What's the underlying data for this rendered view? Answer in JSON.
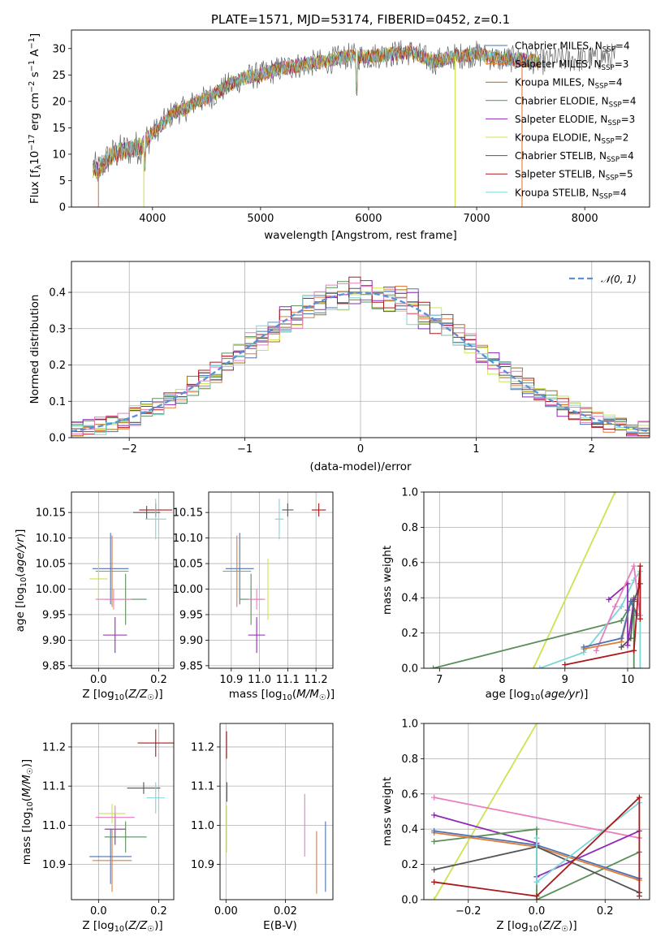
{
  "chart_data": [
    {
      "id": "spectrum",
      "type": "line",
      "title": "PLATE=1571, MJD=53174, FIBERID=0452, z=0.1",
      "xlabel": "wavelength [Angstrom, rest frame]",
      "ylabel": "Flux [f_λ 10^-17 erg cm^-2 s^-1 A^-1]",
      "xlim": [
        3250,
        8600
      ],
      "ylim": [
        0,
        33.5
      ],
      "xticks": [
        4000,
        5000,
        6000,
        7000,
        8000
      ],
      "yticks": [
        0,
        5,
        10,
        15,
        20,
        25,
        30
      ],
      "grid": false,
      "legend_position": "right",
      "envelope": {
        "x": [
          3450,
          3500,
          3600,
          3700,
          3800,
          3900,
          3950,
          4000,
          4100,
          4200,
          4300,
          4400,
          4500,
          4700,
          4850,
          5000,
          5200,
          5400,
          5600,
          5800,
          6000,
          6200,
          6400,
          6600,
          6800,
          7000,
          7200,
          7400,
          7600,
          7800,
          8000,
          8200,
          8300
        ],
        "y": [
          7.3,
          7.0,
          9.5,
          10.5,
          11.0,
          11.5,
          13.0,
          13.8,
          16.0,
          18.0,
          18.5,
          20.0,
          20.5,
          23.0,
          24.5,
          25.0,
          26.3,
          27.0,
          27.5,
          28.5,
          28.5,
          29.0,
          29.3,
          27.5,
          28.5,
          29.0,
          28.0,
          28.0,
          27.5,
          28.0,
          28.0,
          28.5,
          28.5
        ]
      },
      "series": [
        {
          "name": "Chabrier MILES, N_SSP=4",
          "color": "#4c72b0"
        },
        {
          "name": "Salpeter MILES, N_SSP=3",
          "color": "#e17d3a"
        },
        {
          "name": "Kroupa MILES, N_SSP=4",
          "color": "#a56f15"
        },
        {
          "name": "Chabrier ELODIE, N_SSP=4",
          "color": "#5b8f5a"
        },
        {
          "name": "Salpeter ELODIE, N_SSP=3",
          "color": "#8e2ab5"
        },
        {
          "name": "Kroupa ELODIE, N_SSP=2",
          "color": "#cde350"
        },
        {
          "name": "Chabrier STELIB, N_SSP=4",
          "color": "#555555"
        },
        {
          "name": "Salpeter STELIB, N_SSP=5",
          "color": "#aa1a1a"
        },
        {
          "name": "Kroupa STELIB, N_SSP=4",
          "color": "#7fd4d8"
        }
      ]
    },
    {
      "id": "residuals",
      "type": "step",
      "xlabel": "(data-model)/error",
      "ylabel": "Normed distribution",
      "xlim": [
        -2.5,
        2.5
      ],
      "ylim": [
        0,
        0.485
      ],
      "xticks": [
        -2,
        -1,
        0,
        1,
        2
      ],
      "yticks": [
        0.0,
        0.1,
        0.2,
        0.3,
        0.4
      ],
      "grid": true,
      "legend": [
        {
          "label": "𝒩(0, 1)",
          "color": "#5b8fd6",
          "style": "dashed"
        }
      ],
      "legend_position": "top-right",
      "gaussian": {
        "mean": 0,
        "sigma": 1
      }
    },
    {
      "id": "age-vs-Z",
      "type": "errorbar",
      "xlabel": "Z [log10(Z/Z☉)]",
      "ylabel": "age [log10(age/yr)]",
      "xlim": [
        -0.09,
        0.25
      ],
      "ylim": [
        9.845,
        10.19
      ],
      "xticks": [
        "0.0",
        "0.2"
      ],
      "yticks": [
        "9.85",
        "9.90",
        "9.95",
        "10.00",
        "10.05",
        "10.10",
        "10.15"
      ],
      "grid": true,
      "points": [
        {
          "color": "#4c72b0",
          "x": 0.04,
          "y": 10.04,
          "xerr": 0.06,
          "yerr": 0.07
        },
        {
          "color": "#e17d3a",
          "x": 0.045,
          "y": 10.035,
          "xerr": 0.055,
          "yerr": 0.07
        },
        {
          "color": "#5b8f5a",
          "x": 0.09,
          "y": 9.98,
          "xerr": 0.07,
          "yerr": 0.05
        },
        {
          "color": "#8e2ab5",
          "x": 0.055,
          "y": 9.91,
          "xerr": 0.04,
          "yerr": 0.035
        },
        {
          "color": "#cde350",
          "x": 0.0,
          "y": 10.02,
          "xerr": 0.03,
          "yerr": 0.045
        },
        {
          "color": "#555555",
          "x": 0.16,
          "y": 10.15,
          "xerr": 0.045,
          "yerr": 0.013
        },
        {
          "color": "#aa1a1a",
          "x": 0.19,
          "y": 10.155,
          "xerr": 0.055,
          "yerr": 0.013
        },
        {
          "color": "#7fd4d8",
          "x": 0.19,
          "y": 10.137,
          "xerr": 0.035,
          "yerr": 0.04
        },
        {
          "color": "#e87ebf",
          "x": 0.05,
          "y": 9.98,
          "xerr": 0.06,
          "yerr": 0.02
        }
      ]
    },
    {
      "id": "age-vs-mass",
      "type": "errorbar",
      "xlabel": "mass [log10(M/M☉)]",
      "xlim": [
        10.82,
        11.26
      ],
      "ylim": [
        9.845,
        10.19
      ],
      "xticks": [
        "10.9",
        "11.0",
        "11.1",
        "11.2"
      ],
      "yticks": [
        "9.85",
        "9.90",
        "9.95",
        "10.00",
        "10.05",
        "10.10",
        "10.15"
      ],
      "grid": true,
      "points": [
        {
          "color": "#4c72b0",
          "x": 10.93,
          "y": 10.04,
          "xerr": 0.05,
          "yerr": 0.07
        },
        {
          "color": "#e17d3a",
          "x": 10.92,
          "y": 10.035,
          "xerr": 0.05,
          "yerr": 0.07
        },
        {
          "color": "#5b8f5a",
          "x": 10.97,
          "y": 9.98,
          "xerr": 0.04,
          "yerr": 0.05
        },
        {
          "color": "#8e2ab5",
          "x": 10.99,
          "y": 9.91,
          "xerr": 0.03,
          "yerr": 0.035
        },
        {
          "color": "#cde350",
          "x": 11.03,
          "y": 10.0,
          "xerr": 0.02,
          "yerr": 0.06
        },
        {
          "color": "#555555",
          "x": 11.1,
          "y": 10.155,
          "xerr": 0.02,
          "yerr": 0.013
        },
        {
          "color": "#aa1a1a",
          "x": 11.21,
          "y": 10.155,
          "xerr": 0.025,
          "yerr": 0.013
        },
        {
          "color": "#7fd4d8",
          "x": 11.07,
          "y": 10.137,
          "xerr": 0.015,
          "yerr": 0.04
        },
        {
          "color": "#e87ebf",
          "x": 10.99,
          "y": 9.98,
          "xerr": 0.03,
          "yerr": 0.02
        }
      ]
    },
    {
      "id": "weight-vs-age",
      "type": "line",
      "xlabel": "age [log10(age/yr)]",
      "ylabel": "mass weight",
      "xlim": [
        6.75,
        10.35
      ],
      "ylim": [
        0,
        1.0
      ],
      "xticks": [
        "7",
        "8",
        "9",
        "10"
      ],
      "yticks": [
        "0.0",
        "0.2",
        "0.4",
        "0.6",
        "0.8",
        "1.0"
      ],
      "grid": true,
      "series": [
        {
          "color": "#cde350",
          "x": [
            8.5,
            9.8
          ],
          "y": [
            0.0,
            1.0
          ]
        },
        {
          "color": "#5b8f5a",
          "x": [
            6.9,
            9.9,
            10.0,
            10.1,
            10.1
          ],
          "y": [
            0.0,
            0.27,
            0.33,
            0.4,
            0.0
          ]
        },
        {
          "color": "#7fd4d8",
          "x": [
            8.6,
            9.3,
            9.9,
            10.1,
            10.2,
            10.2
          ],
          "y": [
            0.0,
            0.09,
            0.35,
            0.5,
            0.55,
            0.0
          ]
        },
        {
          "color": "#8e2ab5",
          "x": [
            9.7,
            10.0,
            10.0,
            10.1
          ],
          "y": [
            0.39,
            0.48,
            0.13,
            0.39
          ]
        },
        {
          "color": "#e87ebf",
          "x": [
            9.5,
            9.8,
            10.1,
            10.2
          ],
          "y": [
            0.1,
            0.35,
            0.58,
            0.3
          ]
        },
        {
          "color": "#e17d3a",
          "x": [
            9.3,
            9.9,
            10.05,
            10.15
          ],
          "y": [
            0.11,
            0.15,
            0.38,
            0.31
          ]
        },
        {
          "color": "#4c72b0",
          "x": [
            9.3,
            9.9,
            10.05,
            10.15
          ],
          "y": [
            0.12,
            0.17,
            0.38,
            0.3
          ]
        },
        {
          "color": "#555555",
          "x": [
            9.9,
            10.05,
            10.1,
            10.2
          ],
          "y": [
            0.12,
            0.17,
            0.38,
            0.48
          ]
        },
        {
          "color": "#aa1a1a",
          "x": [
            9.0,
            10.1,
            10.2,
            10.2
          ],
          "y": [
            0.02,
            0.1,
            0.58,
            0.28
          ]
        }
      ]
    },
    {
      "id": "mass-vs-Z",
      "type": "errorbar",
      "xlabel": "Z [log10(Z/Z☉)]",
      "ylabel": "mass [log10(M/M☉)]",
      "xlim": [
        -0.09,
        0.25
      ],
      "ylim": [
        10.81,
        11.26
      ],
      "xticks": [
        "0.0",
        "0.2"
      ],
      "yticks": [
        "10.9",
        "11.0",
        "11.1",
        "11.2"
      ],
      "grid": true,
      "points": [
        {
          "color": "#4c72b0",
          "x": 0.04,
          "y": 10.92,
          "xerr": 0.07,
          "yerr": 0.07
        },
        {
          "color": "#e17d3a",
          "x": 0.045,
          "y": 10.91,
          "xerr": 0.065,
          "yerr": 0.08
        },
        {
          "color": "#5b8f5a",
          "x": 0.09,
          "y": 10.97,
          "xerr": 0.07,
          "yerr": 0.04
        },
        {
          "color": "#8e2ab5",
          "x": 0.055,
          "y": 10.99,
          "xerr": 0.035,
          "yerr": 0.04
        },
        {
          "color": "#cde350",
          "x": 0.045,
          "y": 11.03,
          "xerr": 0.045,
          "yerr": 0.025
        },
        {
          "color": "#555555",
          "x": 0.15,
          "y": 11.095,
          "xerr": 0.055,
          "yerr": 0.015
        },
        {
          "color": "#aa1a1a",
          "x": 0.19,
          "y": 11.21,
          "xerr": 0.06,
          "yerr": 0.035
        },
        {
          "color": "#7fd4d8",
          "x": 0.19,
          "y": 11.07,
          "xerr": 0.03,
          "yerr": 0.04
        },
        {
          "color": "#e87ebf",
          "x": 0.055,
          "y": 11.02,
          "xerr": 0.065,
          "yerr": 0.03
        }
      ]
    },
    {
      "id": "mass-vs-EBV",
      "type": "errorbar",
      "xlabel": "E(B-V)",
      "xlim": [
        -0.002,
        0.036
      ],
      "ylim": [
        10.81,
        11.26
      ],
      "xticks": [
        "0.00",
        "0.02"
      ],
      "yticks": [
        "10.9",
        "11.0",
        "11.1",
        "11.2"
      ],
      "grid": true,
      "points": [
        {
          "color": "#aa1a1a",
          "x": 0.0002,
          "y": 11.205,
          "xerr": 0.0,
          "yerr": 0.035
        },
        {
          "color": "#555555",
          "x": 0.0003,
          "y": 11.085,
          "xerr": 0.0,
          "yerr": 0.025
        },
        {
          "color": "#cde350",
          "x": 0.0002,
          "y": 10.99,
          "xerr": 0.0,
          "yerr": 0.06
        },
        {
          "color": "#e87ebf",
          "x": 0.0265,
          "y": 11.0,
          "xerr": 0.0,
          "yerr": 0.08
        },
        {
          "color": "#e17d3a",
          "x": 0.0305,
          "y": 10.905,
          "xerr": 0.0,
          "yerr": 0.08
        },
        {
          "color": "#4c72b0",
          "x": 0.0335,
          "y": 10.92,
          "xerr": 0.0,
          "yerr": 0.09
        }
      ]
    },
    {
      "id": "weight-vs-Z",
      "type": "line",
      "xlabel": "Z [log10(Z/Z☉)]",
      "ylabel": "mass weight",
      "xlim": [
        -0.33,
        0.33
      ],
      "ylim": [
        0,
        1.0
      ],
      "xticks": [
        "−0.2",
        "0.0",
        "0.2"
      ],
      "yticks": [
        "0.0",
        "0.2",
        "0.4",
        "0.6",
        "0.8",
        "1.0"
      ],
      "grid": true,
      "series": [
        {
          "color": "#cde350",
          "x": [
            -0.3,
            0.0
          ],
          "y": [
            0.0,
            1.0
          ]
        },
        {
          "color": "#e87ebf",
          "x": [
            -0.3,
            0.3
          ],
          "y": [
            0.58,
            0.35
          ]
        },
        {
          "color": "#8e2ab5",
          "x": [
            -0.3,
            0.0,
            0.0,
            0.3
          ],
          "y": [
            0.48,
            0.32,
            0.13,
            0.39
          ]
        },
        {
          "color": "#5b8f5a",
          "x": [
            -0.3,
            0.0,
            0.0,
            0.3
          ],
          "y": [
            0.33,
            0.4,
            0.0,
            0.27
          ]
        },
        {
          "color": "#e17d3a",
          "x": [
            -0.3,
            0.0,
            0.3
          ],
          "y": [
            0.38,
            0.3,
            0.11
          ]
        },
        {
          "color": "#4c72b0",
          "x": [
            -0.3,
            0.0,
            0.3
          ],
          "y": [
            0.39,
            0.31,
            0.12
          ]
        },
        {
          "color": "#555555",
          "x": [
            -0.3,
            0.0,
            0.3
          ],
          "y": [
            0.17,
            0.3,
            0.04
          ]
        },
        {
          "color": "#7fd4d8",
          "x": [
            0.0,
            0.0,
            0.3
          ],
          "y": [
            0.35,
            0.1,
            0.55
          ]
        },
        {
          "color": "#aa1a1a",
          "x": [
            -0.3,
            0.0,
            0.3,
            0.3
          ],
          "y": [
            0.1,
            0.02,
            0.58,
            0.02
          ]
        }
      ]
    }
  ]
}
